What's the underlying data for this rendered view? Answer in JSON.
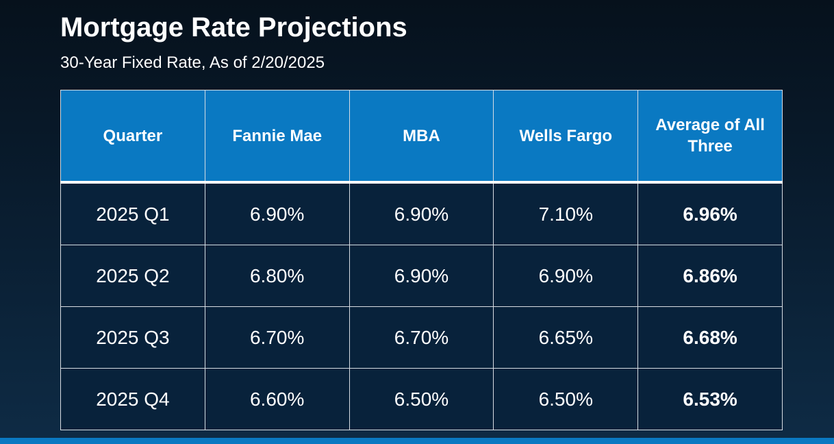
{
  "chart_data": {
    "type": "table",
    "title": "Mortgage Rate Projections",
    "subtitle": "30-Year Fixed Rate, As of 2/20/2025",
    "columns": [
      "Quarter",
      "Fannie Mae",
      "MBA",
      "Wells Fargo",
      "Average of All Three"
    ],
    "rows": [
      {
        "quarter": "2025 Q1",
        "fannie_mae": "6.90%",
        "mba": "6.90%",
        "wells_fargo": "7.10%",
        "average": "6.96%"
      },
      {
        "quarter": "2025 Q2",
        "fannie_mae": "6.80%",
        "mba": "6.90%",
        "wells_fargo": "6.90%",
        "average": "6.86%"
      },
      {
        "quarter": "2025 Q3",
        "fannie_mae": "6.70%",
        "mba": "6.70%",
        "wells_fargo": "6.65%",
        "average": "6.68%"
      },
      {
        "quarter": "2025 Q4",
        "fannie_mae": "6.60%",
        "mba": "6.50%",
        "wells_fargo": "6.50%",
        "average": "6.53%"
      }
    ]
  },
  "colors": {
    "header_fill": "#0a79c2",
    "body_fill": "#08223b",
    "background": "#06111c",
    "border": "#d8dde3"
  }
}
